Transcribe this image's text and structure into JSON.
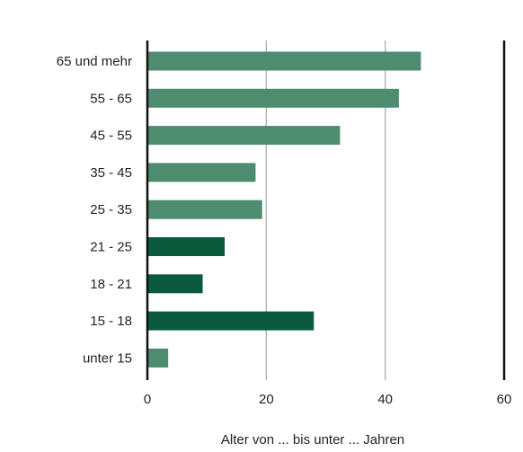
{
  "chart_data": {
    "type": "bar",
    "orientation": "horizontal",
    "categories": [
      "65 und mehr",
      "55 - 65",
      "45 - 55",
      "35 - 45",
      "25 - 35",
      "21 - 25",
      "18 - 21",
      "15 - 18",
      "unter 15"
    ],
    "values": [
      46,
      42.3,
      32.4,
      18.2,
      19.3,
      13,
      9.3,
      28,
      3.5
    ],
    "colors": [
      "#4e8c6f",
      "#4e8c6f",
      "#4e8c6f",
      "#4e8c6f",
      "#4e8c6f",
      "#0b5a3d",
      "#0b5a3d",
      "#0b5a3d",
      "#4e8c6f"
    ],
    "xlim": [
      0,
      60
    ],
    "xticks": [
      0,
      20,
      40,
      60
    ],
    "xlabel": "Alter von ... bis unter ... Jahren",
    "ylabel": "",
    "title": "",
    "grid": "vertical"
  }
}
